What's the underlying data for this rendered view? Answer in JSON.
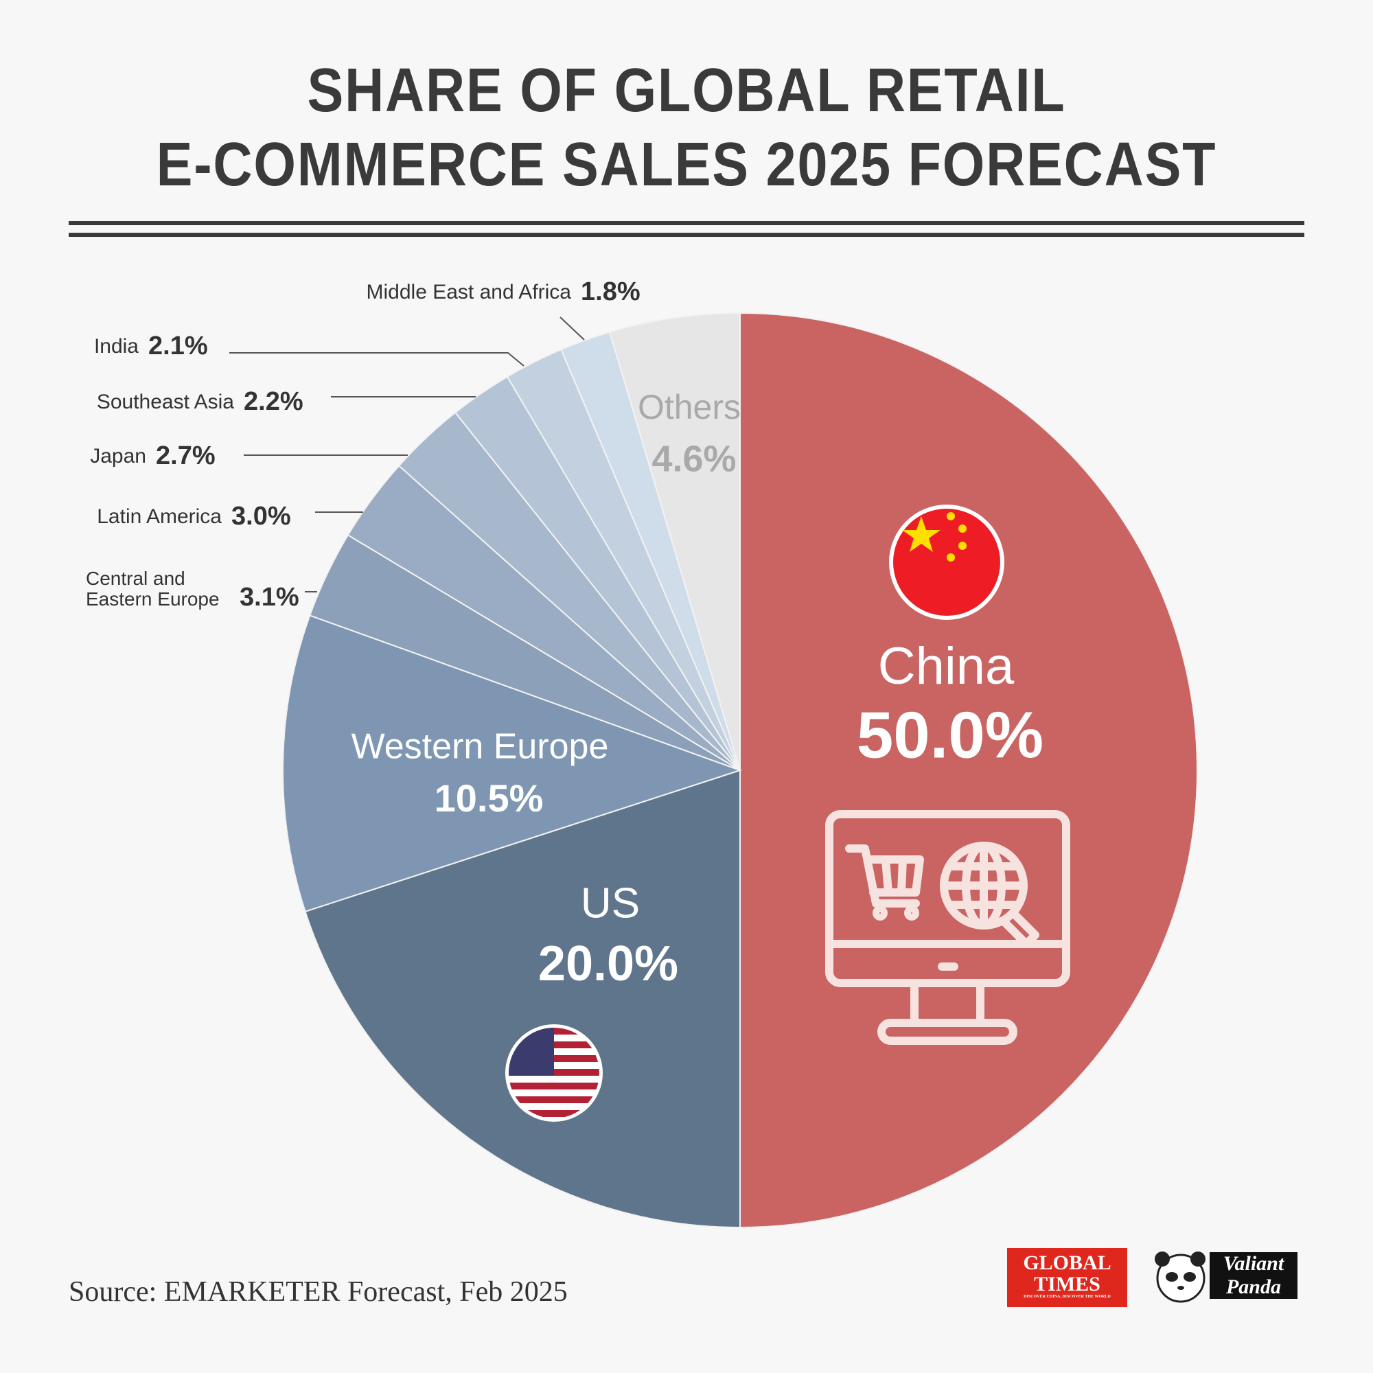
{
  "chart_data": {
    "type": "pie",
    "title": "SHARE OF GLOBAL RETAIL\nE-COMMERCE SALES 2025 FORECAST",
    "categories": [
      "China",
      "US",
      "Western Europe",
      "Central and\nEastern Europe",
      "Latin America",
      "Japan",
      "Southeast Asia",
      "India",
      "Middle East and Africa",
      "Others"
    ],
    "values": [
      50.0,
      20.0,
      10.5,
      3.1,
      3.0,
      2.7,
      2.2,
      2.1,
      1.8,
      4.6
    ],
    "value_labels": [
      "50.0%",
      "20.0%",
      "10.5%",
      "3.1%",
      "3.0%",
      "2.7%",
      "2.2%",
      "2.1%",
      "1.8%",
      "4.6%"
    ],
    "colors": [
      "#c96462",
      "#5f758c",
      "#7f96b2",
      "#8ca0b9",
      "#99acc3",
      "#a7b8cc",
      "#b4c4d6",
      "#c2d0df",
      "#cfdcea",
      "#e6e6e6"
    ]
  },
  "source": "Source: EMARKETER Forecast, Feb 2025",
  "logos": {
    "global_times": "GLOBAL\nTIMES",
    "global_times_tagline": "DISCOVER CHINA, DISCOVER THE WORLD",
    "valiant_panda": "Valiant\nPanda"
  }
}
